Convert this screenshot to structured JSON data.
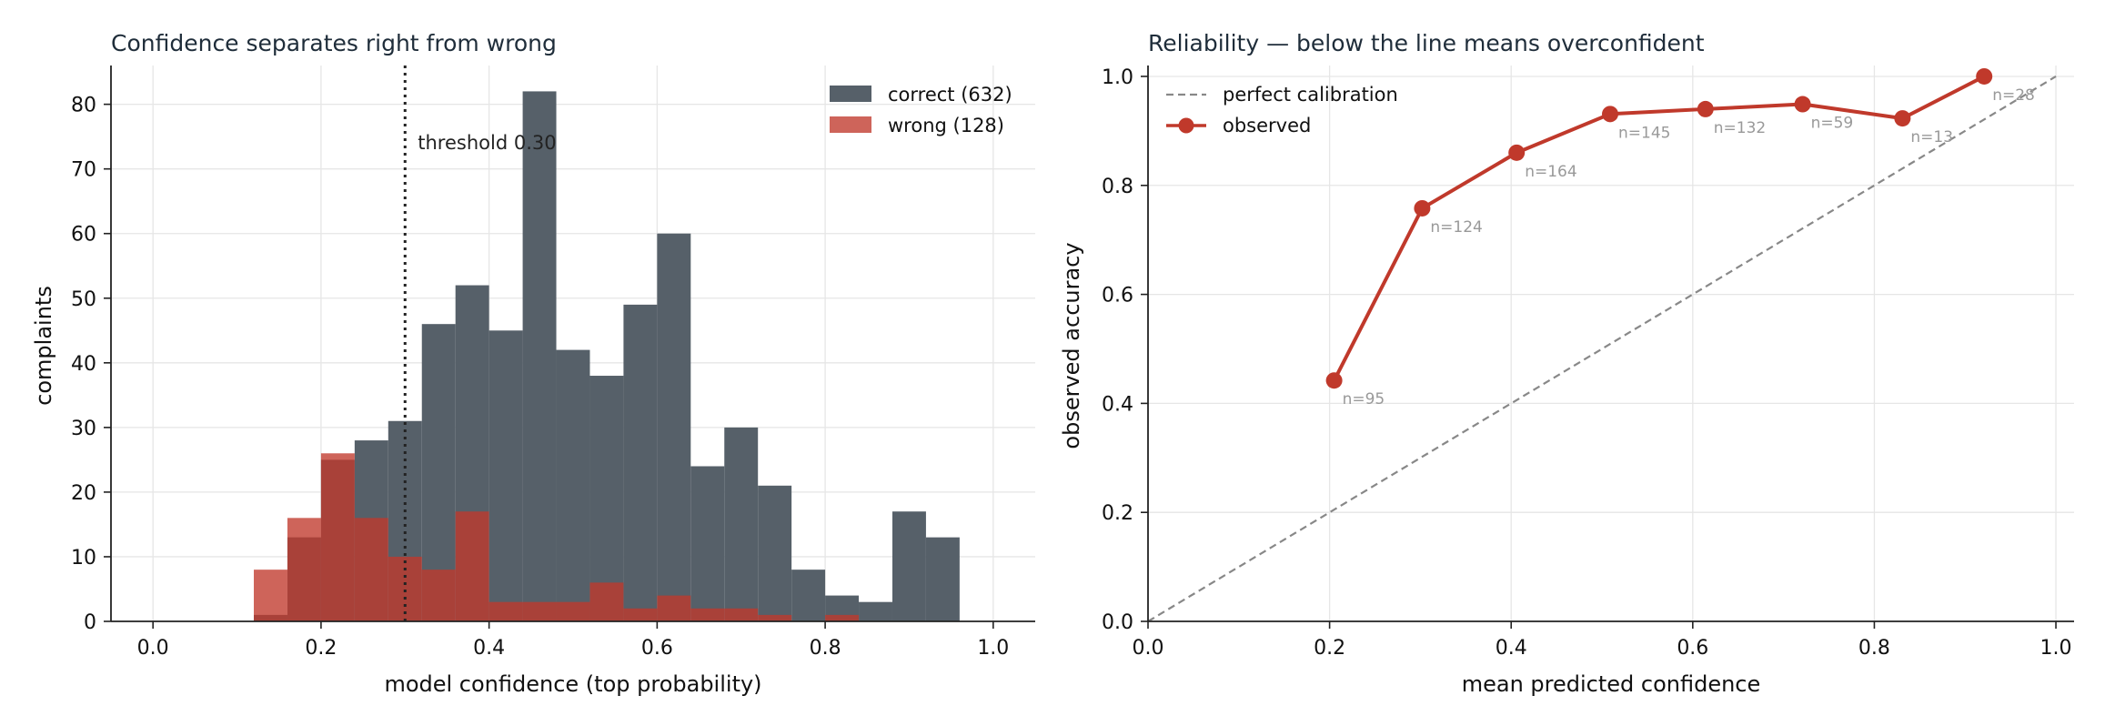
{
  "chart_data": [
    {
      "type": "histogram",
      "title": "Confidence separates right from wrong",
      "xlabel": "model confidence (top probability)",
      "ylabel": "complaints",
      "xlim": [
        -0.05,
        1.05
      ],
      "ylim": [
        0,
        86
      ],
      "xticks": [
        0.0,
        0.2,
        0.4,
        0.6,
        0.8,
        1.0
      ],
      "xtick_labels": [
        "0.0",
        "0.2",
        "0.4",
        "0.6",
        "0.8",
        "1.0"
      ],
      "yticks": [
        0,
        10,
        20,
        30,
        40,
        50,
        60,
        70,
        80
      ],
      "ytick_labels": [
        "0",
        "10",
        "20",
        "30",
        "40",
        "50",
        "60",
        "70",
        "80"
      ],
      "grid": true,
      "legend_position": "top-right",
      "bin_edges": [
        0.12,
        0.16,
        0.2,
        0.24,
        0.28,
        0.32,
        0.36,
        0.4,
        0.44,
        0.48,
        0.52,
        0.56,
        0.6,
        0.64,
        0.68,
        0.72,
        0.76,
        0.8,
        0.84,
        0.88,
        0.92,
        0.96
      ],
      "series": [
        {
          "name": "correct (632)",
          "color": "#566069",
          "values": [
            1,
            13,
            25,
            28,
            31,
            46,
            52,
            45,
            82,
            42,
            38,
            49,
            60,
            24,
            30,
            21,
            8,
            4,
            3,
            17,
            13
          ]
        },
        {
          "name": "wrong (128)",
          "color": "#c0392b",
          "values": [
            8,
            16,
            26,
            16,
            10,
            8,
            17,
            3,
            3,
            3,
            6,
            2,
            4,
            2,
            2,
            1,
            0,
            1,
            0,
            0,
            0
          ]
        }
      ],
      "annotations": [
        {
          "type": "vline",
          "x": 0.3,
          "text": "threshold 0.30",
          "color": "#222222"
        }
      ]
    },
    {
      "type": "line",
      "title": "Reliability — below the line means overconfident",
      "xlabel": "mean predicted confidence",
      "ylabel": "observed accuracy",
      "xlim": [
        0.0,
        1.02
      ],
      "ylim": [
        0.0,
        1.02
      ],
      "xticks": [
        0.0,
        0.2,
        0.4,
        0.6,
        0.8,
        1.0
      ],
      "xtick_labels": [
        "0.0",
        "0.2",
        "0.4",
        "0.6",
        "0.8",
        "1.0"
      ],
      "yticks": [
        0.0,
        0.2,
        0.4,
        0.6,
        0.8,
        1.0
      ],
      "ytick_labels": [
        "0.0",
        "0.2",
        "0.4",
        "0.6",
        "0.8",
        "1.0"
      ],
      "grid": true,
      "legend_position": "top-left",
      "series": [
        {
          "name": "perfect calibration",
          "style": "dashed",
          "color": "#888888",
          "x": [
            0.0,
            1.0
          ],
          "y": [
            0.0,
            1.0
          ]
        },
        {
          "name": "observed",
          "style": "line-marker",
          "color": "#c0392b",
          "x": [
            0.205,
            0.302,
            0.406,
            0.509,
            0.614,
            0.721,
            0.831,
            0.921
          ],
          "y": [
            0.442,
            0.758,
            0.86,
            0.931,
            0.94,
            0.949,
            0.923,
            1.0
          ],
          "labels": [
            "n=95",
            "n=124",
            "n=164",
            "n=145",
            "n=132",
            "n=59",
            "n=13",
            "n=28"
          ]
        }
      ]
    }
  ]
}
